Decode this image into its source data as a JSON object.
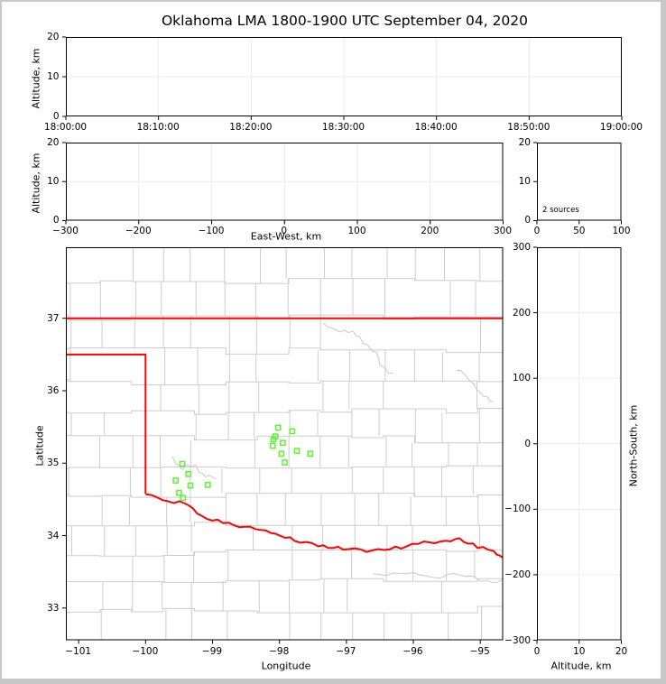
{
  "title": "Oklahoma LMA 1800-1900 UTC September 04, 2020",
  "colors": {
    "state_border": "#ff0000",
    "county_line": "#cdcdcd",
    "river_line": "#cdcdcd",
    "station_marker": "#5df332",
    "gridline": "#ebebeb",
    "spine": "#000000",
    "frame": "#c8c8c8"
  },
  "chart_data": [
    {
      "id": "time-altitude",
      "type": "scatter",
      "ylabel": "Altitude, km",
      "xtick_labels": [
        "18:00:00",
        "18:10:00",
        "18:20:00",
        "18:30:00",
        "18:40:00",
        "18:50:00",
        "19:00:00"
      ],
      "ytick_labels": [
        "20",
        "10",
        "0"
      ],
      "ylim": [
        0,
        20
      ],
      "points": []
    },
    {
      "id": "eastwest-altitude",
      "type": "scatter",
      "xlabel": "East-West, km",
      "ylabel": "Altitude, km",
      "xtick_labels": [
        "−300",
        "−200",
        "−100",
        "0",
        "100",
        "200",
        "300"
      ],
      "ytick_labels": [
        "20",
        "10",
        "0"
      ],
      "xlim": [
        -300,
        300
      ],
      "ylim": [
        0,
        20
      ],
      "points": []
    },
    {
      "id": "altitude-histogram",
      "type": "histogram",
      "annotation": "2 sources",
      "xtick_labels": [
        "0",
        "50",
        "100"
      ],
      "ytick_labels": [
        "20",
        "10",
        "0"
      ],
      "xlim": [
        0,
        100
      ],
      "ylim": [
        0,
        20
      ],
      "points": []
    },
    {
      "id": "map",
      "type": "scatter",
      "xlabel": "Longitude",
      "ylabel": "Latitude",
      "xtick_values": [
        -101,
        -100,
        -99,
        -98,
        -97,
        -96,
        -95
      ],
      "xtick_labels": [
        "−101",
        "−100",
        "−99",
        "−98",
        "−97",
        "−96",
        "−95"
      ],
      "ytick_values": [
        37,
        36,
        35,
        34,
        33
      ],
      "ytick_labels": [
        "37",
        "36",
        "35",
        "34",
        "33"
      ],
      "lonlim": [
        -101.191,
        -94.659
      ],
      "latlim": [
        32.555,
        37.981
      ],
      "stations": [
        [
          -99.45,
          34.99
        ],
        [
          -99.36,
          34.85
        ],
        [
          -99.55,
          34.76
        ],
        [
          -99.33,
          34.69
        ],
        [
          -99.07,
          34.7
        ],
        [
          -99.5,
          34.59
        ],
        [
          -99.44,
          34.52
        ],
        [
          -98.02,
          35.49
        ],
        [
          -97.81,
          35.44
        ],
        [
          -98.06,
          35.37
        ],
        [
          -98.09,
          35.33
        ],
        [
          -97.95,
          35.28
        ],
        [
          -98.1,
          35.24
        ],
        [
          -97.74,
          35.17
        ],
        [
          -97.97,
          35.13
        ],
        [
          -97.54,
          35.13
        ],
        [
          -97.92,
          35.01
        ]
      ],
      "state_border": {
        "north": [
          [
            -101.191,
            37.0
          ],
          [
            -94.659,
            37.0
          ]
        ],
        "panhandle": [
          [
            -101.191,
            36.5
          ],
          [
            -100.0,
            36.5
          ],
          [
            -100.0,
            34.58
          ]
        ],
        "red_river": [
          [
            -100.0,
            34.58
          ],
          [
            -99.745,
            34.48
          ],
          [
            -99.41,
            34.45
          ],
          [
            -99.17,
            34.27
          ],
          [
            -98.84,
            34.17
          ],
          [
            -98.44,
            34.12
          ],
          [
            -98.13,
            34.04
          ],
          [
            -97.77,
            33.94
          ],
          [
            -97.42,
            33.85
          ],
          [
            -97.05,
            33.83
          ],
          [
            -96.61,
            33.79
          ],
          [
            -96.18,
            33.84
          ],
          [
            -95.84,
            33.9
          ],
          [
            -95.44,
            33.93
          ],
          [
            -95.31,
            33.95
          ],
          [
            -95.04,
            33.85
          ],
          [
            -94.8,
            33.77
          ],
          [
            -94.659,
            33.69
          ]
        ]
      },
      "rivers": [
        [
          [
            -97.35,
            36.95
          ],
          [
            -97.1,
            36.8
          ],
          [
            -96.9,
            36.85
          ],
          [
            -96.75,
            36.65
          ],
          [
            -96.55,
            36.55
          ],
          [
            -96.5,
            36.35
          ],
          [
            -96.3,
            36.25
          ]
        ],
        [
          [
            -99.6,
            35.05
          ],
          [
            -99.45,
            34.95
          ],
          [
            -99.25,
            34.95
          ],
          [
            -99.1,
            34.82
          ],
          [
            -98.95,
            34.78
          ]
        ],
        [
          [
            -96.6,
            33.45
          ],
          [
            -96.2,
            33.5
          ],
          [
            -95.8,
            33.42
          ],
          [
            -95.3,
            33.48
          ],
          [
            -94.9,
            33.35
          ],
          [
            -94.66,
            33.4
          ]
        ],
        [
          [
            -95.35,
            36.3
          ],
          [
            -95.1,
            36.1
          ],
          [
            -94.95,
            35.9
          ],
          [
            -94.8,
            35.85
          ]
        ]
      ]
    },
    {
      "id": "northsouth-altitude",
      "type": "scatter",
      "xlabel": "Altitude, km",
      "ylabel_right": "North-South, km",
      "xtick_labels": [
        "0",
        "10",
        "20"
      ],
      "ytick_labels": [
        "300",
        "200",
        "100",
        "0",
        "−100",
        "−200",
        "−300"
      ],
      "xlim": [
        0,
        20
      ],
      "ylim": [
        -300,
        300
      ],
      "points": []
    }
  ]
}
